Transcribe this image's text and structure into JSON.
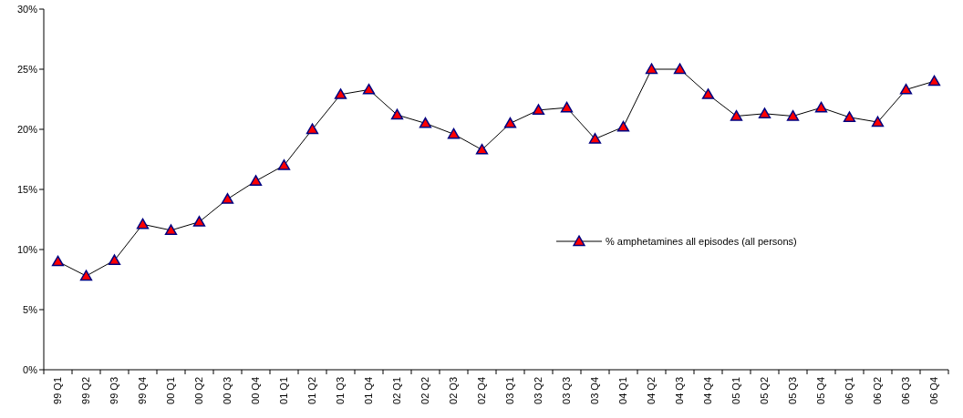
{
  "chart_data": {
    "type": "line",
    "categories": [
      "99 Q1",
      "99 Q2",
      "99 Q3",
      "99 Q4",
      "00 Q1",
      "00 Q2",
      "00 Q3",
      "00 Q4",
      "01 Q1",
      "01 Q2",
      "01 Q3",
      "01 Q4",
      "02 Q1",
      "02 Q2",
      "02 Q3",
      "02 Q4",
      "03 Q1",
      "03 Q2",
      "03 Q3",
      "03 Q4",
      "04 Q1",
      "04 Q2",
      "04 Q3",
      "04 Q4",
      "05 Q1",
      "05 Q2",
      "05 Q3",
      "05 Q4",
      "06 Q1",
      "06 Q2",
      "06 Q3",
      "06 Q4"
    ],
    "series": [
      {
        "name": "% amphetamines all episodes (all persons)",
        "color": "#ff0000",
        "values": [
          9.0,
          7.8,
          9.1,
          12.1,
          11.6,
          12.3,
          14.2,
          15.7,
          17.0,
          20.0,
          22.9,
          23.3,
          21.2,
          20.5,
          19.6,
          18.3,
          20.5,
          21.6,
          21.8,
          19.2,
          20.2,
          25.0,
          25.0,
          22.9,
          21.1,
          21.3,
          21.1,
          21.8,
          21.0,
          20.6,
          23.3,
          24.0
        ]
      }
    ],
    "ylim": [
      0,
      30
    ],
    "yticks": [
      {
        "value": 0,
        "label": "0%"
      },
      {
        "value": 5,
        "label": "5%"
      },
      {
        "value": 10,
        "label": "10%"
      },
      {
        "value": 15,
        "label": "15%"
      },
      {
        "value": 20,
        "label": "20%"
      },
      {
        "value": 25,
        "label": "25%"
      },
      {
        "value": 30,
        "label": "30%"
      }
    ],
    "grid": false,
    "legend": "right",
    "marker": "triangle",
    "line_style": "solid"
  }
}
